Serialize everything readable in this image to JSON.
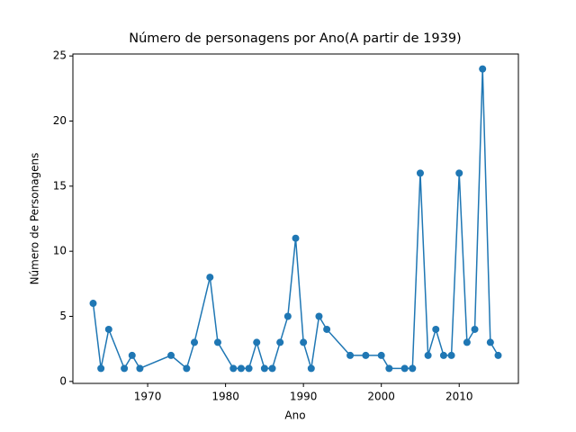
{
  "chart_data": {
    "type": "line",
    "title": "Número de personagens por Ano(A partir de 1939)",
    "x_label": "Ano",
    "y_label": "Número de Personagens",
    "x": [
      1963,
      1964,
      1965,
      1967,
      1968,
      1969,
      1973,
      1975,
      1976,
      1978,
      1979,
      1981,
      1982,
      1983,
      1984,
      1985,
      1986,
      1987,
      1988,
      1989,
      1990,
      1991,
      1992,
      1993,
      1996,
      1998,
      2000,
      2001,
      2003,
      2004,
      2005,
      2006,
      2007,
      2008,
      2009,
      2010,
      2011,
      2012,
      2013,
      2014,
      2015
    ],
    "values": [
      6,
      1,
      4,
      1,
      2,
      1,
      2,
      1,
      3,
      8,
      3,
      1,
      1,
      1,
      3,
      1,
      1,
      3,
      5,
      11,
      3,
      1,
      5,
      4,
      2,
      2,
      2,
      1,
      1,
      1,
      16,
      2,
      4,
      2,
      2,
      16,
      3,
      4,
      24,
      3,
      2
    ],
    "color": "#1f77b4",
    "xlim": [
      1960.4,
      2017.6
    ],
    "xticks": [
      1970,
      1980,
      1990,
      2000,
      2010
    ],
    "ylim": [
      -0.15,
      25.15
    ],
    "yticks": [
      0,
      5,
      10,
      15,
      20,
      25
    ],
    "grid": false
  }
}
